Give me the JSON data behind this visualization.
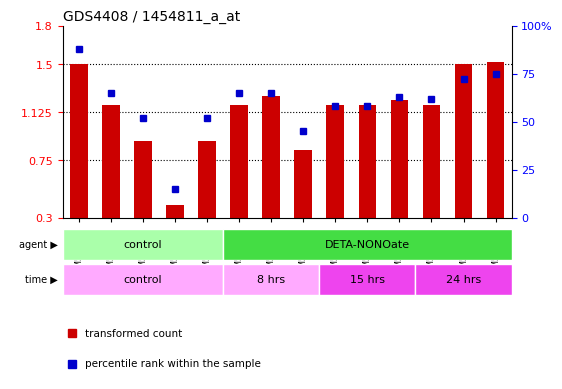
{
  "title": "GDS4408 / 1454811_a_at",
  "samples": [
    "GSM549080",
    "GSM549081",
    "GSM549082",
    "GSM549083",
    "GSM549084",
    "GSM549085",
    "GSM549086",
    "GSM549087",
    "GSM549088",
    "GSM549089",
    "GSM549090",
    "GSM549091",
    "GSM549092",
    "GSM549093"
  ],
  "bar_values": [
    1.5,
    1.18,
    0.9,
    0.4,
    0.9,
    1.18,
    1.25,
    0.83,
    1.18,
    1.18,
    1.22,
    1.18,
    1.5,
    1.52
  ],
  "dot_values": [
    88,
    65,
    52,
    15,
    52,
    65,
    65,
    45,
    58,
    58,
    63,
    62,
    72,
    75
  ],
  "bar_color": "#cc0000",
  "dot_color": "#0000cc",
  "ylim_left": [
    0.3,
    1.8
  ],
  "ylim_right": [
    0,
    100
  ],
  "yticks_left": [
    0.3,
    0.75,
    1.125,
    1.5,
    1.8
  ],
  "ytick_labels_left": [
    "0.3",
    "0.75",
    "1.125",
    "1.5",
    "1.8"
  ],
  "yticks_right": [
    0,
    25,
    50,
    75,
    100
  ],
  "ytick_labels_right": [
    "0",
    "25",
    "50",
    "75",
    "100%"
  ],
  "hlines": [
    0.75,
    1.125,
    1.5
  ],
  "agent_groups": [
    {
      "label": "control",
      "start": 0,
      "end": 4,
      "color": "#aaffaa"
    },
    {
      "label": "DETA-NONOate",
      "start": 5,
      "end": 13,
      "color": "#44dd44"
    }
  ],
  "time_groups": [
    {
      "label": "control",
      "start": 0,
      "end": 4,
      "color": "#ffaaff"
    },
    {
      "label": "8 hrs",
      "start": 5,
      "end": 7,
      "color": "#ffaaff"
    },
    {
      "label": "15 hrs",
      "start": 8,
      "end": 10,
      "color": "#ee44ee"
    },
    {
      "label": "24 hrs",
      "start": 11,
      "end": 13,
      "color": "#ee44ee"
    }
  ],
  "legend_bar_label": "transformed count",
  "legend_dot_label": "percentile rank within the sample",
  "background_color": "#ffffff",
  "plot_bg_color": "#ffffff",
  "tick_area_color": "#dddddd"
}
